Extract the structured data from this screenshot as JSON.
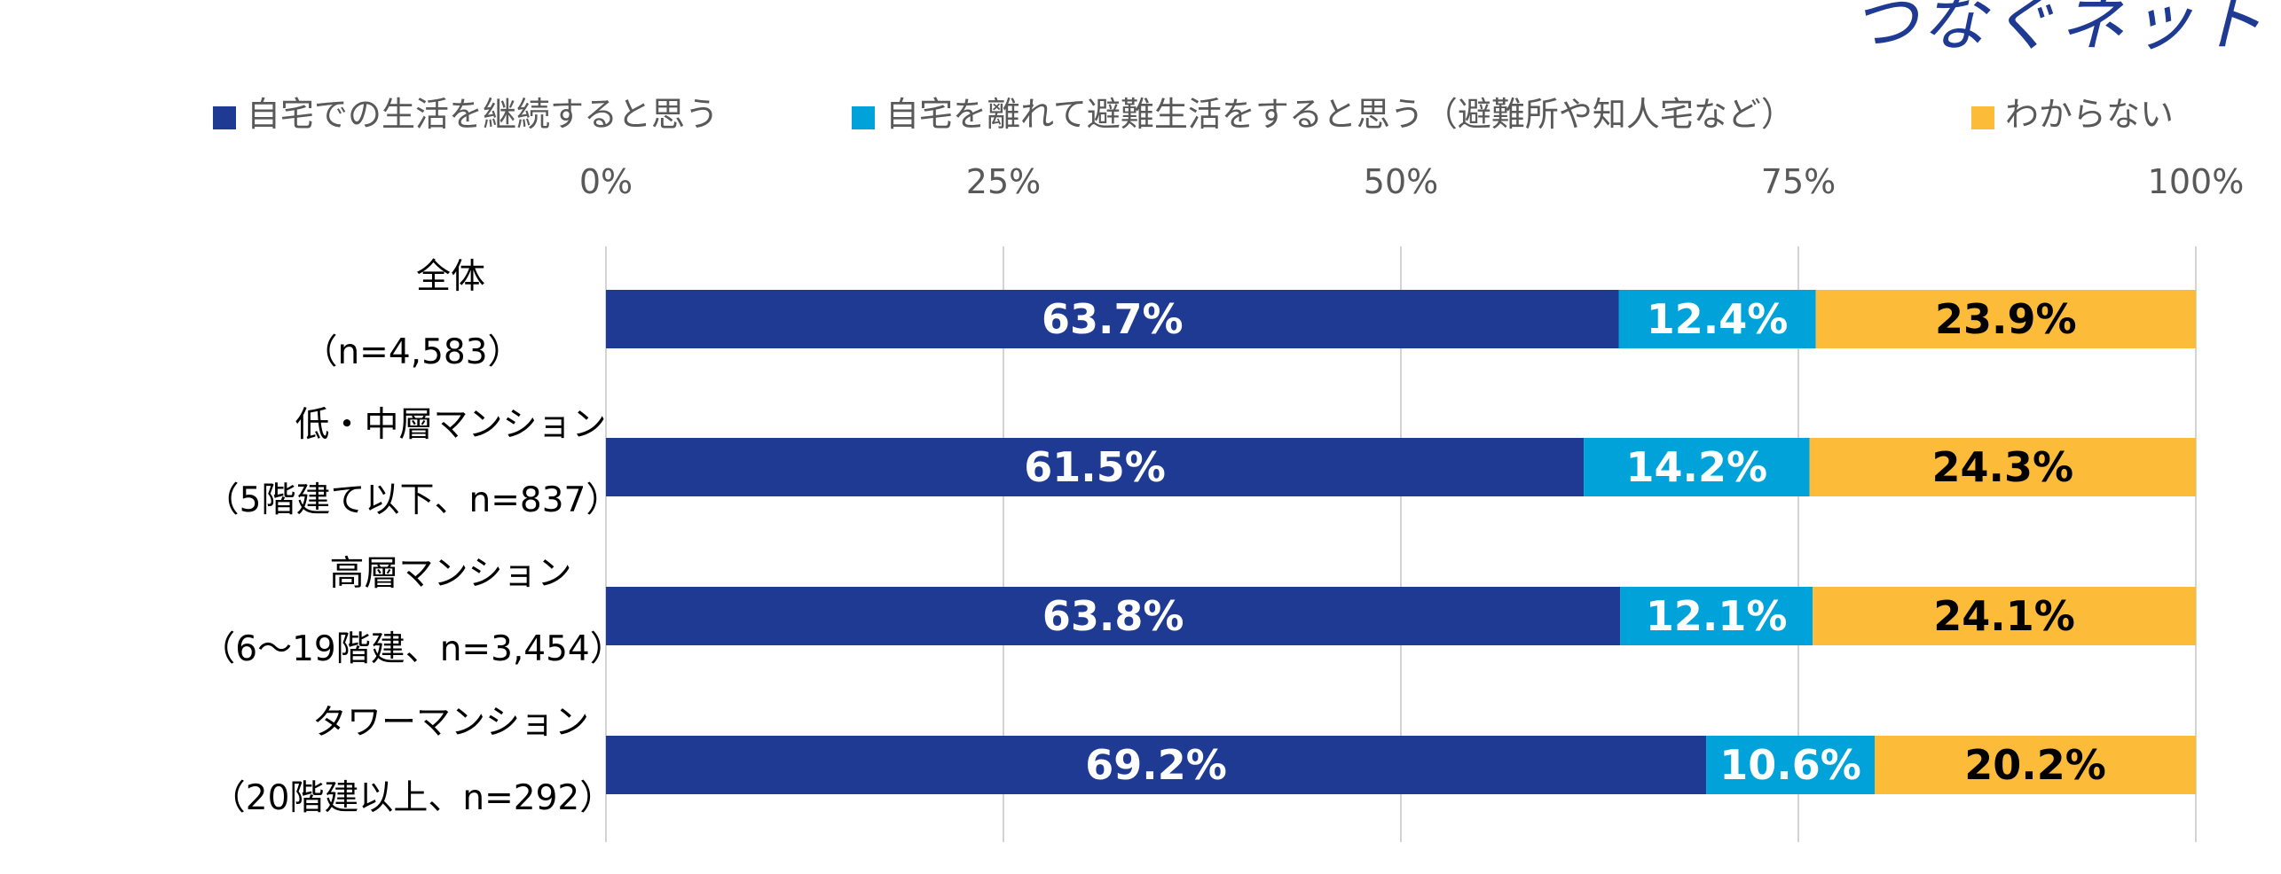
{
  "brand": {
    "logo_text": "つなぐネット"
  },
  "chart_data": {
    "type": "bar",
    "orientation": "horizontal",
    "stacked": true,
    "percent_stacked": true,
    "categories": [
      {
        "line1": "全体",
        "line2": "（n=4,583）"
      },
      {
        "line1": "低・中層マンション",
        "line2": "（5階建て以下、n=837）"
      },
      {
        "line1": "高層マンション",
        "line2": "（6〜19階建、n=3,454）"
      },
      {
        "line1": "タワーマンション",
        "line2": "（20階建以上、n=292）"
      }
    ],
    "series": [
      {
        "name": "自宅での生活を継続すると思う",
        "color": "#1f3a93",
        "label_color": "#ffffff",
        "values": [
          63.7,
          61.5,
          63.8,
          69.2
        ]
      },
      {
        "name": "自宅を離れて避難生活をすると思う（避難所や知人宅など）",
        "color": "#00a3d9",
        "label_color": "#ffffff",
        "values": [
          12.4,
          14.2,
          12.1,
          10.6
        ]
      },
      {
        "name": "わからない",
        "color": "#fcbb38",
        "label_color": "#000000",
        "values": [
          23.9,
          24.3,
          24.1,
          20.2
        ]
      }
    ],
    "data_labels": [
      [
        "63.7%",
        "61.5%",
        "63.8%",
        "69.2%"
      ],
      [
        "12.4%",
        "14.2%",
        "12.1%",
        "10.6%"
      ],
      [
        "23.9%",
        "24.3%",
        "24.1%",
        "20.2%"
      ]
    ],
    "xlim": [
      0,
      100
    ],
    "x_ticks": [
      0,
      25,
      50,
      75,
      100
    ],
    "x_tick_labels": [
      "0%",
      "25%",
      "50%",
      "75%",
      "100%"
    ],
    "axis_position": "top",
    "grid": true,
    "legend_position": "top"
  }
}
